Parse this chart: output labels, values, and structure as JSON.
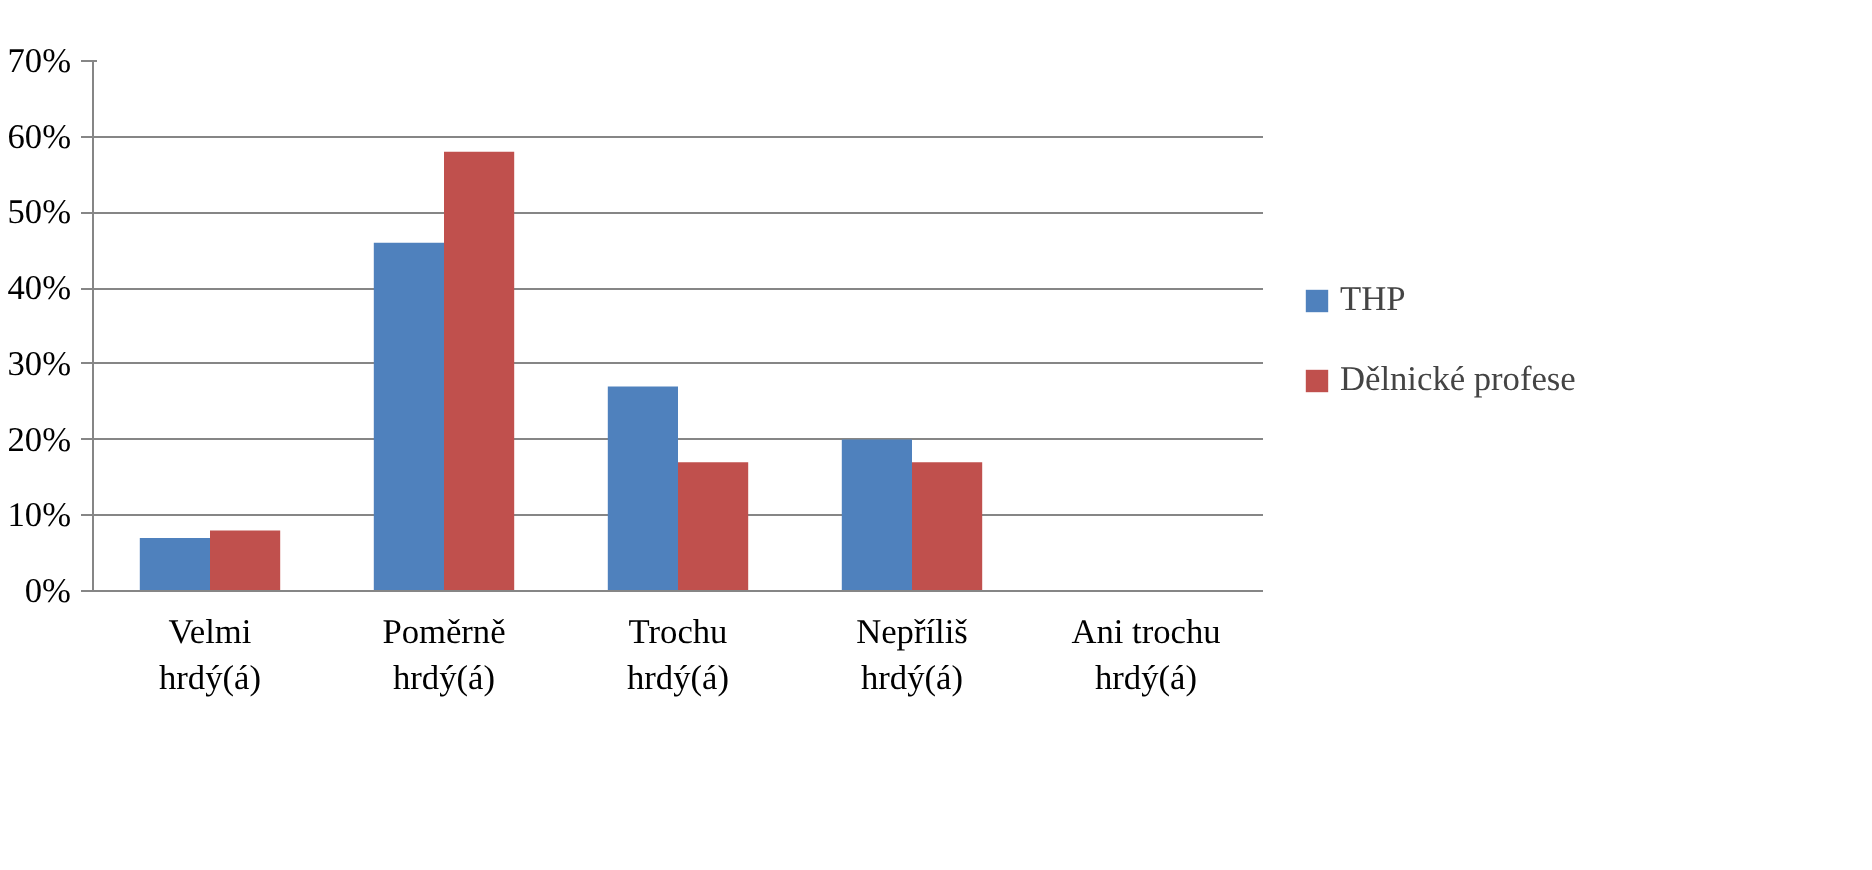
{
  "chart_data": {
    "type": "bar",
    "categories": [
      "Velmi hrdý(á)",
      "Poměrně hrdý(á)",
      "Trochu hrdý(á)",
      "Nepříliš hrdý(á)",
      "Ani trochu hrdý(á)"
    ],
    "series": [
      {
        "name": "THP",
        "color": "#4f81bd",
        "values": [
          7,
          46,
          27,
          20,
          0
        ]
      },
      {
        "name": "Dělnické profese",
        "color": "#c0504d",
        "values": [
          8,
          58,
          17,
          17,
          0
        ]
      }
    ],
    "ylim": [
      0,
      70
    ],
    "yticks": [
      {
        "value": 0,
        "label": "0%"
      },
      {
        "value": 10,
        "label": "10%"
      },
      {
        "value": 20,
        "label": "20%"
      },
      {
        "value": 30,
        "label": "30%"
      },
      {
        "value": 40,
        "label": "40%"
      },
      {
        "value": 50,
        "label": "50%"
      },
      {
        "value": 60,
        "label": "60%"
      },
      {
        "value": 70,
        "label": "70%"
      }
    ],
    "grid": "y",
    "legend": "right"
  }
}
